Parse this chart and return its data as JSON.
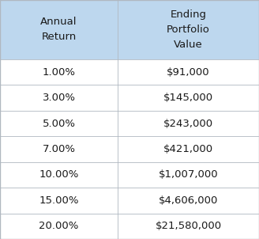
{
  "col1_header": "Annual\nReturn",
  "col2_header": "Ending\nPortfolio\nValue",
  "rows": [
    [
      "1.00%",
      "$91,000"
    ],
    [
      "3.00%",
      "$145,000"
    ],
    [
      "5.00%",
      "$243,000"
    ],
    [
      "7.00%",
      "$421,000"
    ],
    [
      "10.00%",
      "$1,007,000"
    ],
    [
      "15.00%",
      "$4,606,000"
    ],
    [
      "20.00%",
      "$21,580,000"
    ]
  ],
  "header_bg": "#BDD7EE",
  "row_bg": "#FFFFFF",
  "border_color": "#B0B8C0",
  "header_text_color": "#1a1a1a",
  "cell_text_color": "#1a1a1a",
  "header_fontsize": 9.5,
  "cell_fontsize": 9.5,
  "fig_width": 3.28,
  "fig_height": 3.02,
  "dpi": 100,
  "col_split": 0.455
}
